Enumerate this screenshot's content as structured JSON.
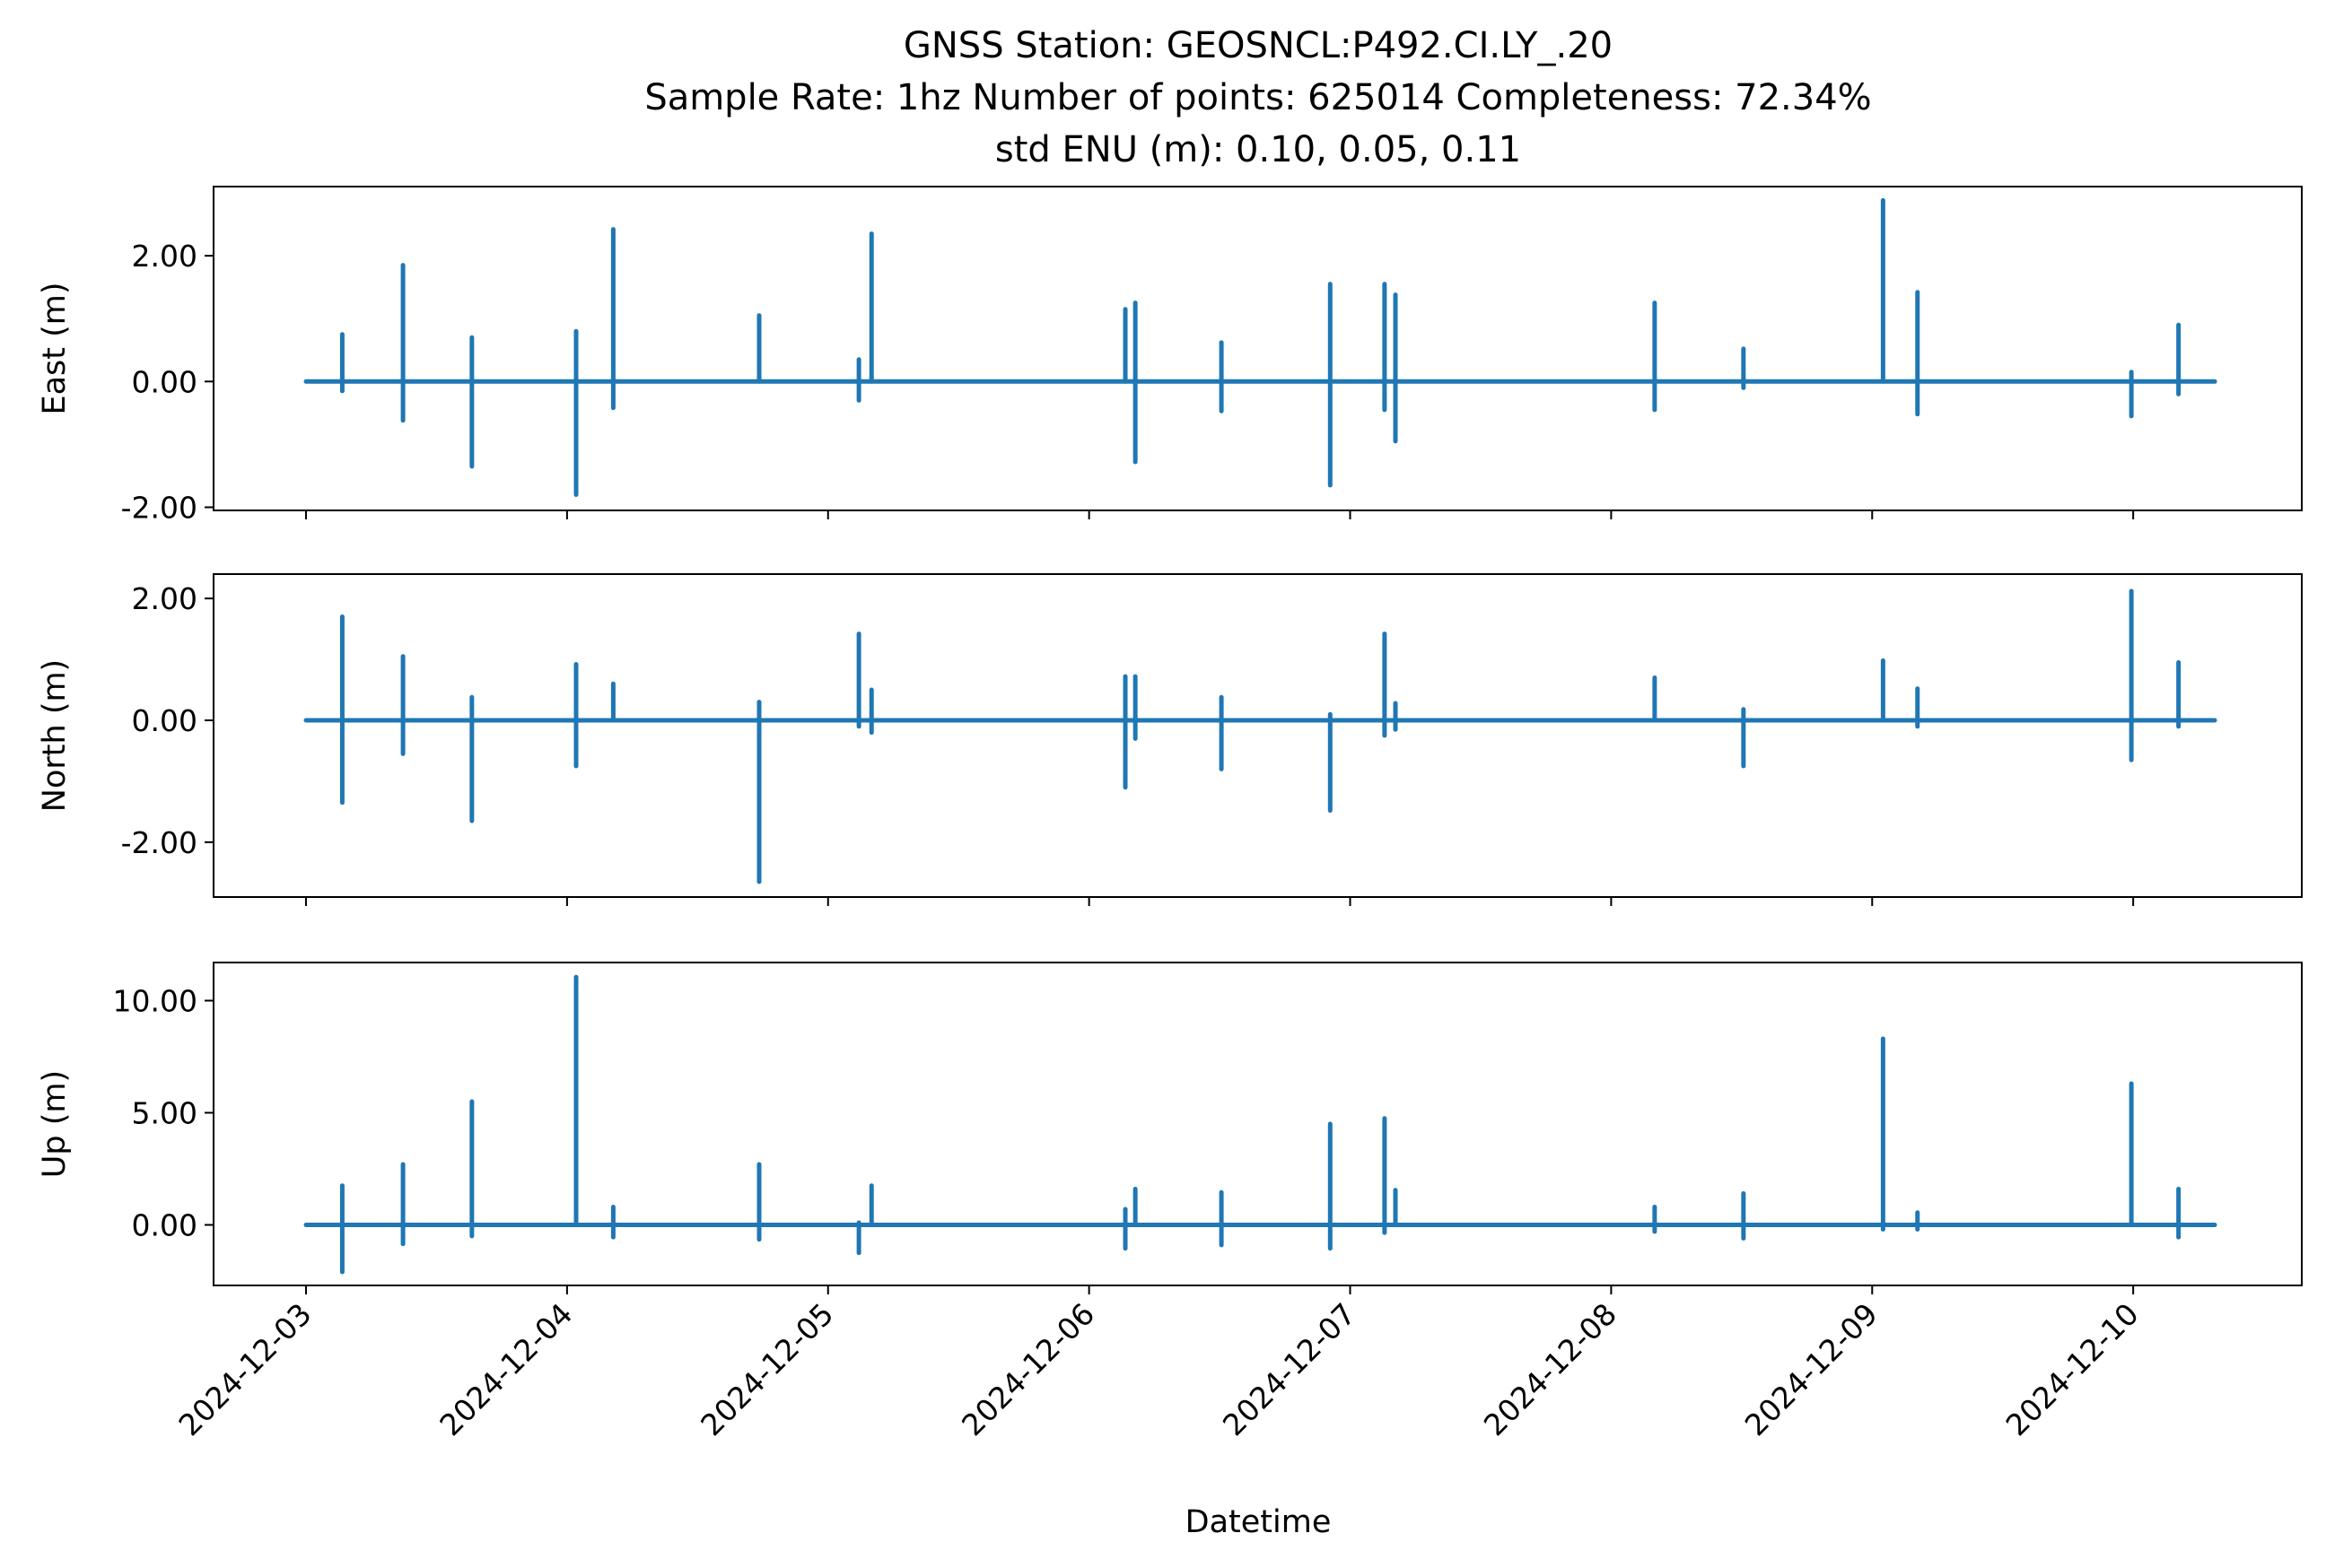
{
  "figure": {
    "title_lines": [
      "GNSS Station: GEOSNCL:P492.CI.LY_.20",
      "Sample Rate: 1hz   Number of points: 625014    Completeness:  72.34%",
      "std ENU (m):  0.10, 0.05, 0.11"
    ],
    "xlabel": "Datetime"
  },
  "chart_data": [
    {
      "type": "line",
      "ylabel": "East (m)",
      "color": "#1f77b4",
      "xlim": [
        "2024-12-02 15:30",
        "2024-12-10 15:30"
      ],
      "ylim": [
        -2.05,
        3.1
      ],
      "yticks": [
        -2.0,
        0.0,
        2.0
      ],
      "ytick_labels": [
        "-2.00",
        "0.00",
        "2.00"
      ],
      "x_ticks": [
        "2024-12-03",
        "2024-12-04",
        "2024-12-05",
        "2024-12-06",
        "2024-12-07",
        "2024-12-08",
        "2024-12-09",
        "2024-12-10"
      ],
      "x_tick_labels_visible": false,
      "series_range": [
        "2024-12-03 00:00",
        "2024-12-10 07:30"
      ],
      "baseline": 0.0,
      "spikes": [
        {
          "t": "2024-12-03 03:20",
          "min": -0.15,
          "max": 0.75
        },
        {
          "t": "2024-12-03 08:55",
          "min": -0.62,
          "max": 1.85
        },
        {
          "t": "2024-12-03 15:15",
          "min": -1.35,
          "max": 0.7
        },
        {
          "t": "2024-12-04 00:50",
          "min": -1.8,
          "max": 0.8
        },
        {
          "t": "2024-12-04 04:15",
          "min": -0.42,
          "max": 2.42
        },
        {
          "t": "2024-12-04 17:40",
          "min": 0.0,
          "max": 1.05
        },
        {
          "t": "2024-12-05 02:50",
          "min": -0.3,
          "max": 0.35
        },
        {
          "t": "2024-12-05 04:00",
          "min": 0.0,
          "max": 2.35
        },
        {
          "t": "2024-12-06 03:20",
          "min": 0.0,
          "max": 1.15
        },
        {
          "t": "2024-12-06 04:15",
          "min": -1.28,
          "max": 1.25
        },
        {
          "t": "2024-12-06 12:10",
          "min": -0.47,
          "max": 0.62
        },
        {
          "t": "2024-12-06 22:10",
          "min": -1.65,
          "max": 1.55
        },
        {
          "t": "2024-12-07 03:10",
          "min": -0.45,
          "max": 1.55
        },
        {
          "t": "2024-12-07 04:10",
          "min": -0.95,
          "max": 1.38
        },
        {
          "t": "2024-12-08 04:00",
          "min": -0.45,
          "max": 1.25
        },
        {
          "t": "2024-12-08 12:10",
          "min": -0.1,
          "max": 0.52
        },
        {
          "t": "2024-12-09 01:00",
          "min": 0.0,
          "max": 2.88
        },
        {
          "t": "2024-12-09 04:10",
          "min": -0.52,
          "max": 1.42
        },
        {
          "t": "2024-12-09 23:50",
          "min": -0.55,
          "max": 0.15
        },
        {
          "t": "2024-12-10 04:10",
          "min": -0.2,
          "max": 0.9
        }
      ]
    },
    {
      "type": "line",
      "ylabel": "North (m)",
      "color": "#1f77b4",
      "xlim": [
        "2024-12-02 15:30",
        "2024-12-10 15:30"
      ],
      "ylim": [
        -2.9,
        2.4
      ],
      "yticks": [
        -2.0,
        0.0,
        2.0
      ],
      "ytick_labels": [
        "-2.00",
        "0.00",
        "2.00"
      ],
      "x_ticks": [
        "2024-12-03",
        "2024-12-04",
        "2024-12-05",
        "2024-12-06",
        "2024-12-07",
        "2024-12-08",
        "2024-12-09",
        "2024-12-10"
      ],
      "x_tick_labels_visible": false,
      "series_range": [
        "2024-12-03 00:00",
        "2024-12-10 07:30"
      ],
      "baseline": 0.0,
      "spikes": [
        {
          "t": "2024-12-03 03:20",
          "min": -1.35,
          "max": 1.7
        },
        {
          "t": "2024-12-03 08:55",
          "min": -0.55,
          "max": 1.05
        },
        {
          "t": "2024-12-03 15:15",
          "min": -1.65,
          "max": 0.38
        },
        {
          "t": "2024-12-04 00:50",
          "min": -0.75,
          "max": 0.92
        },
        {
          "t": "2024-12-04 04:15",
          "min": 0.0,
          "max": 0.6
        },
        {
          "t": "2024-12-04 17:40",
          "min": -2.65,
          "max": 0.3
        },
        {
          "t": "2024-12-05 02:50",
          "min": -0.1,
          "max": 1.42
        },
        {
          "t": "2024-12-05 04:00",
          "min": -0.2,
          "max": 0.5
        },
        {
          "t": "2024-12-06 03:20",
          "min": -1.1,
          "max": 0.72
        },
        {
          "t": "2024-12-06 04:15",
          "min": -0.3,
          "max": 0.72
        },
        {
          "t": "2024-12-06 12:10",
          "min": -0.8,
          "max": 0.38
        },
        {
          "t": "2024-12-06 22:10",
          "min": -1.48,
          "max": 0.1
        },
        {
          "t": "2024-12-07 03:10",
          "min": -0.25,
          "max": 1.42
        },
        {
          "t": "2024-12-07 04:10",
          "min": -0.15,
          "max": 0.28
        },
        {
          "t": "2024-12-08 04:00",
          "min": 0.0,
          "max": 0.7
        },
        {
          "t": "2024-12-08 12:10",
          "min": -0.75,
          "max": 0.18
        },
        {
          "t": "2024-12-09 01:00",
          "min": 0.0,
          "max": 0.98
        },
        {
          "t": "2024-12-09 04:10",
          "min": -0.1,
          "max": 0.52
        },
        {
          "t": "2024-12-09 23:50",
          "min": -0.65,
          "max": 2.12
        },
        {
          "t": "2024-12-10 04:10",
          "min": -0.1,
          "max": 0.95
        }
      ]
    },
    {
      "type": "line",
      "ylabel": "Up (m)",
      "color": "#1f77b4",
      "xlim": [
        "2024-12-02 15:30",
        "2024-12-10 15:30"
      ],
      "ylim": [
        -2.7,
        11.7
      ],
      "yticks": [
        0.0,
        5.0,
        10.0
      ],
      "ytick_labels": [
        "0.00",
        "5.00",
        "10.00"
      ],
      "x_ticks": [
        "2024-12-03",
        "2024-12-04",
        "2024-12-05",
        "2024-12-06",
        "2024-12-07",
        "2024-12-08",
        "2024-12-09",
        "2024-12-10"
      ],
      "x_tick_labels_visible": true,
      "series_range": [
        "2024-12-03 00:00",
        "2024-12-10 07:30"
      ],
      "baseline": 0.0,
      "spikes": [
        {
          "t": "2024-12-03 03:20",
          "min": -2.1,
          "max": 1.75
        },
        {
          "t": "2024-12-03 08:55",
          "min": -0.85,
          "max": 2.7
        },
        {
          "t": "2024-12-03 15:15",
          "min": -0.5,
          "max": 5.5
        },
        {
          "t": "2024-12-04 00:50",
          "min": 0.0,
          "max": 11.05
        },
        {
          "t": "2024-12-04 04:15",
          "min": -0.55,
          "max": 0.8
        },
        {
          "t": "2024-12-04 17:40",
          "min": -0.65,
          "max": 2.7
        },
        {
          "t": "2024-12-05 02:50",
          "min": -1.25,
          "max": 0.1
        },
        {
          "t": "2024-12-05 04:00",
          "min": 0.0,
          "max": 1.75
        },
        {
          "t": "2024-12-06 03:20",
          "min": -1.05,
          "max": 0.7
        },
        {
          "t": "2024-12-06 04:15",
          "min": 0.0,
          "max": 1.6
        },
        {
          "t": "2024-12-06 12:10",
          "min": -0.9,
          "max": 1.45
        },
        {
          "t": "2024-12-06 22:10",
          "min": -1.05,
          "max": 4.5
        },
        {
          "t": "2024-12-07 03:10",
          "min": -0.35,
          "max": 4.75
        },
        {
          "t": "2024-12-07 04:10",
          "min": 0.0,
          "max": 1.55
        },
        {
          "t": "2024-12-08 04:00",
          "min": -0.3,
          "max": 0.8
        },
        {
          "t": "2024-12-08 12:10",
          "min": -0.6,
          "max": 1.4
        },
        {
          "t": "2024-12-09 01:00",
          "min": -0.2,
          "max": 8.3
        },
        {
          "t": "2024-12-09 04:10",
          "min": -0.2,
          "max": 0.55
        },
        {
          "t": "2024-12-09 23:50",
          "min": 0.0,
          "max": 6.3
        },
        {
          "t": "2024-12-10 04:10",
          "min": -0.55,
          "max": 1.6
        }
      ]
    }
  ]
}
